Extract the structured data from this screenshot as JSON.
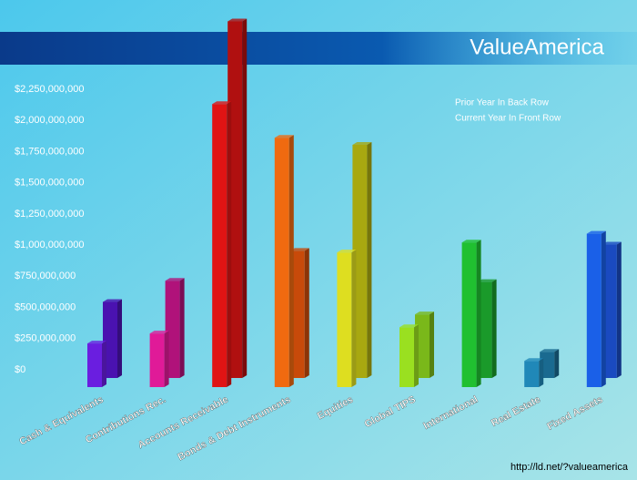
{
  "chart_data": {
    "type": "bar3d",
    "brand": "ValueAmerica",
    "url": "http://ld.net/?valueamerica",
    "categories": [
      "Cash & Equivalents",
      "Contributions Rec.",
      "Accounts Receivable",
      "Bonds & Debt Instruments",
      "Equities",
      "Global TIPS",
      "International",
      "Real Estate",
      "Fixed Assets"
    ],
    "series": [
      {
        "name": "Prior Year In Back Row",
        "colors": [
          "#4a12b0",
          "#b0127a",
          "#b01010",
          "#c84a0a",
          "#a8a810",
          "#7ab81a",
          "#1a9a2a",
          "#1a6a90",
          "#1a4ac0"
        ],
        "values": [
          610000000,
          780000000,
          2860000000,
          1020000000,
          1870000000,
          510000000,
          770000000,
          210000000,
          1070000000
        ]
      },
      {
        "name": "Current Year In Front Row",
        "colors": [
          "#6a1ee0",
          "#e01a98",
          "#e01414",
          "#f06a10",
          "#dede20",
          "#9ae020",
          "#20c030",
          "#2088b8",
          "#1a60e8"
        ],
        "values": [
          350000000,
          430000000,
          2270000000,
          2000000000,
          1080000000,
          480000000,
          1160000000,
          210000000,
          1230000000
        ]
      }
    ],
    "ylim": [
      0,
      2900000000
    ],
    "yticks": [
      {
        "value": 0,
        "label": "$0"
      },
      {
        "value": 250000000,
        "label": "$250,000,000"
      },
      {
        "value": 500000000,
        "label": "$500,000,000"
      },
      {
        "value": 750000000,
        "label": "$750,000,000"
      },
      {
        "value": 1000000000,
        "label": "$1,000,000,000"
      },
      {
        "value": 1250000000,
        "label": "$1,250,000,000"
      },
      {
        "value": 1500000000,
        "label": "$1,500,000,000"
      },
      {
        "value": 1750000000,
        "label": "$1,750,000,000"
      },
      {
        "value": 2000000000,
        "label": "$2,000,000,000"
      },
      {
        "value": 2250000000,
        "label": "$2,250,000,000"
      }
    ]
  }
}
